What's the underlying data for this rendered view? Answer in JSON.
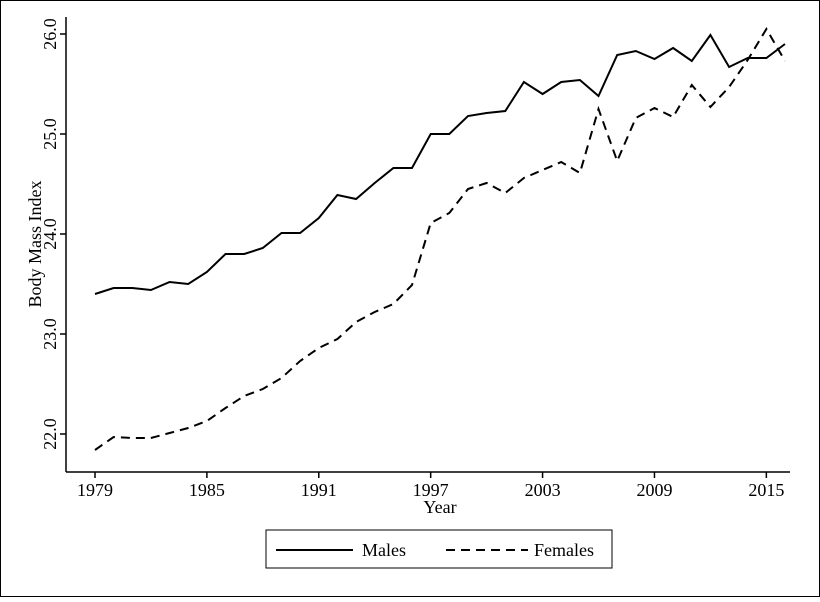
{
  "chart_data": {
    "type": "line",
    "title": "",
    "xlabel": "Year",
    "ylabel": "Body Mass Index",
    "xlim": [
      1979,
      2016
    ],
    "ylim": [
      21.84,
      26.12
    ],
    "xticks": [
      1979,
      1985,
      1991,
      1997,
      2003,
      2009,
      2015
    ],
    "xtick_labels": [
      "1979",
      "1985",
      "1991",
      "1997",
      "2003",
      "2009",
      "2015"
    ],
    "yticks": [
      22.0,
      23.0,
      24.0,
      25.0,
      26.0
    ],
    "ytick_labels": [
      "22.0",
      "23.0",
      "24.0",
      "25.0",
      "26.0"
    ],
    "grid": false,
    "legend_position": "bottom",
    "x": [
      1979,
      1980,
      1981,
      1982,
      1983,
      1984,
      1985,
      1986,
      1987,
      1988,
      1989,
      1990,
      1991,
      1992,
      1993,
      1994,
      1995,
      1996,
      1997,
      1998,
      1999,
      2000,
      2001,
      2002,
      2003,
      2004,
      2005,
      2006,
      2007,
      2008,
      2009,
      2010,
      2011,
      2012,
      2013,
      2014,
      2015,
      2016
    ],
    "series": [
      {
        "name": "Males",
        "style": "solid",
        "color": "#000000",
        "values": [
          23.4,
          23.46,
          23.46,
          23.44,
          23.52,
          23.5,
          23.62,
          23.8,
          23.8,
          23.86,
          24.01,
          24.01,
          24.16,
          24.39,
          24.35,
          24.51,
          24.66,
          24.66,
          25.0,
          25.0,
          25.18,
          25.21,
          25.23,
          25.52,
          25.4,
          25.52,
          25.54,
          25.38,
          25.79,
          25.83,
          25.75,
          25.86,
          25.73,
          25.99,
          25.67,
          25.76,
          25.76,
          25.9
        ]
      },
      {
        "name": "Females",
        "style": "dashed",
        "color": "#000000",
        "values": [
          21.84,
          21.97,
          21.96,
          21.96,
          22.01,
          22.06,
          22.13,
          22.26,
          22.38,
          22.45,
          22.56,
          22.73,
          22.86,
          22.95,
          23.12,
          23.22,
          23.3,
          23.49,
          24.11,
          24.21,
          24.45,
          24.51,
          24.41,
          24.56,
          24.64,
          24.72,
          24.61,
          25.25,
          24.73,
          25.16,
          25.26,
          25.17,
          25.49,
          25.27,
          25.47,
          25.74,
          26.05,
          25.73
        ]
      }
    ]
  }
}
